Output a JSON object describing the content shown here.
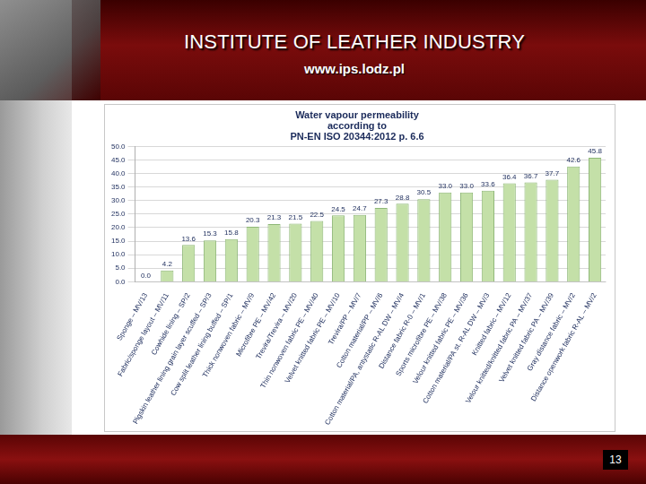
{
  "header": {
    "title": "INSTITUTE OF LEATHER INDUSTRY",
    "url": "www.ips.lodz.pl"
  },
  "page_number": "13",
  "chart_data": {
    "type": "bar",
    "title": [
      "Water vapour permeability",
      "according to",
      "PN-EN ISO 20344:2012 p. 6.6"
    ],
    "categories": [
      "Sponge – MV/13",
      "Fabric/sponge layout – MV/11",
      "Cowhide lining – SP/2",
      "Pigskin leather lining grain layer scuffed – SP/3",
      "Cow split leather lining buffed – SP/1",
      "Thick nonwoven fabric – MV/9",
      "Microfibre PE – MV/42",
      "Trevira/Trevira – MV/20",
      "Thin nonwoven fabric PE – MV/40",
      "Velvet knitted fabric PE – MV/10",
      "Trevira/PP – MV/7",
      "Cotton material/PP – MV/6",
      "Cotton material/PA, antystatic R-AL DW – MV/4",
      "Distance fabric R-0 – MV/1",
      "Sports microfibre PE – MV/38",
      "Velour knitted fabric PE – MV/36",
      "Cotton material/PA st. R-AL DW – MV/3",
      "Knitted fabric – MV/12",
      "Velour knitted/knitted fabric PA – MV/37",
      "Velvet knitted fabric PA – MV/39",
      "Gray distance fabric – MV/2",
      "Distance openwork fabric R-AL – MV/2"
    ],
    "values": [
      0.0,
      4.2,
      13.6,
      15.3,
      15.8,
      20.3,
      21.3,
      21.5,
      22.5,
      24.5,
      24.7,
      27.3,
      28.8,
      30.5,
      33.0,
      33.0,
      33.6,
      36.4,
      36.7,
      37.7,
      42.6,
      45.8
    ],
    "value_labels": [
      "0.0",
      "4.2",
      "13.6",
      "15.3",
      "15.8",
      "20.3",
      "21.3",
      "21.5",
      "22.5",
      "24.5",
      "24.7",
      "27.3",
      "28.8",
      "30.5",
      "33.0",
      "33.0",
      "33.6",
      "36.4",
      "36.7",
      "37.7",
      "42.6",
      "45.8"
    ],
    "color": "#c4e0a8",
    "ylim": [
      0,
      50
    ],
    "yticks": [
      {
        "value": 0,
        "label": "0.0"
      },
      {
        "value": 5,
        "label": "5.0"
      },
      {
        "value": 10,
        "label": "10.0"
      },
      {
        "value": 15,
        "label": "15.0"
      },
      {
        "value": 20,
        "label": "20.0"
      },
      {
        "value": 25,
        "label": "25.0"
      },
      {
        "value": 30,
        "label": "30.0"
      },
      {
        "value": 35,
        "label": "35.0"
      },
      {
        "value": 40,
        "label": "40.0"
      },
      {
        "value": 45,
        "label": "45.0"
      },
      {
        "value": 50,
        "label": "50.0"
      }
    ],
    "grid": true,
    "data_labels": true
  }
}
